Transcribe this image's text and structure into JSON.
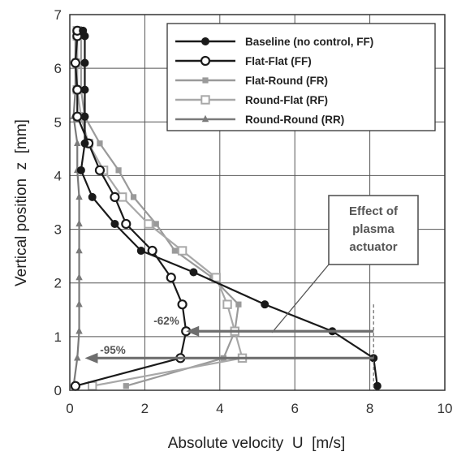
{
  "chart_data": {
    "type": "line",
    "xlabel": "Absolute velocity  U  [m/s]",
    "ylabel": "Vertical position  z  [mm]",
    "xlim": [
      0,
      10
    ],
    "ylim": [
      0,
      7
    ],
    "xticks": [
      "0",
      "2",
      "4",
      "6",
      "8",
      "10"
    ],
    "yticks": [
      "0",
      "1",
      "2",
      "3",
      "4",
      "5",
      "6",
      "7"
    ],
    "grid": true,
    "legend_position": "top-right",
    "series": [
      {
        "name": "Baseline (no control, FF)",
        "color": "#1a1a1a",
        "marker": "filled-circle",
        "x": [
          8.2,
          8.1,
          7.0,
          5.2,
          3.3,
          1.9,
          1.2,
          0.6,
          0.3,
          0.4,
          0.4,
          0.4,
          0.4,
          0.4,
          0.35
        ],
        "y": [
          0.08,
          0.6,
          1.1,
          1.6,
          2.2,
          2.6,
          3.1,
          3.6,
          4.1,
          4.6,
          5.1,
          5.6,
          6.1,
          6.6,
          6.7
        ]
      },
      {
        "name": "Flat-Flat (FF)",
        "color": "#1a1a1a",
        "marker": "open-circle",
        "x": [
          0.15,
          2.95,
          3.1,
          3.0,
          2.7,
          2.2,
          1.5,
          1.2,
          0.8,
          0.5,
          0.2,
          0.2,
          0.15,
          0.2,
          0.2
        ],
        "y": [
          0.08,
          0.6,
          1.1,
          1.6,
          2.1,
          2.6,
          3.1,
          3.6,
          4.1,
          4.6,
          5.1,
          5.6,
          6.1,
          6.6,
          6.7
        ]
      },
      {
        "name": "Flat-Round (FR)",
        "color": "#9a9a9a",
        "marker": "filled-square",
        "x": [
          1.5,
          4.1,
          4.4,
          4.5,
          3.8,
          2.8,
          2.3,
          1.7,
          1.3,
          0.8,
          0.4,
          0.3,
          0.3,
          0.3,
          0.3
        ],
        "y": [
          0.08,
          0.6,
          1.1,
          1.6,
          2.1,
          2.6,
          3.1,
          3.6,
          4.1,
          4.6,
          5.1,
          5.6,
          6.1,
          6.6,
          6.7
        ]
      },
      {
        "name": "Round-Flat (RF)",
        "color": "#a8a8a8",
        "marker": "open-square",
        "x": [
          0.6,
          4.6,
          4.4,
          4.2,
          3.9,
          3.0,
          2.1,
          1.4,
          0.9,
          0.5,
          0.3,
          0.2,
          0.2,
          0.2,
          0.2
        ],
        "y": [
          0.08,
          0.6,
          1.1,
          1.6,
          2.1,
          2.6,
          3.1,
          3.6,
          4.1,
          4.6,
          5.1,
          5.6,
          6.1,
          6.6,
          6.7
        ]
      },
      {
        "name": "Round-Round (RR)",
        "color": "#7a7a7a",
        "marker": "filled-triangle",
        "x": [
          0.1,
          0.2,
          0.25,
          0.25,
          0.25,
          0.25,
          0.25,
          0.25,
          0.2,
          0.2,
          0.1,
          0.15,
          0.15,
          0.15,
          0.15
        ],
        "y": [
          0.08,
          0.6,
          1.1,
          1.6,
          2.1,
          2.6,
          3.1,
          3.6,
          4.1,
          4.6,
          5.1,
          5.6,
          6.1,
          6.6,
          6.7
        ]
      }
    ],
    "annotations": {
      "effect_label": [
        "Effect of",
        "plasma",
        "actuator"
      ],
      "arrows": [
        {
          "label": "-62%",
          "x_from": 8.1,
          "x_to": 3.1,
          "y": 1.1
        },
        {
          "label": "-95%",
          "x_from": 8.1,
          "x_to": 0.4,
          "y": 0.6
        }
      ]
    }
  }
}
